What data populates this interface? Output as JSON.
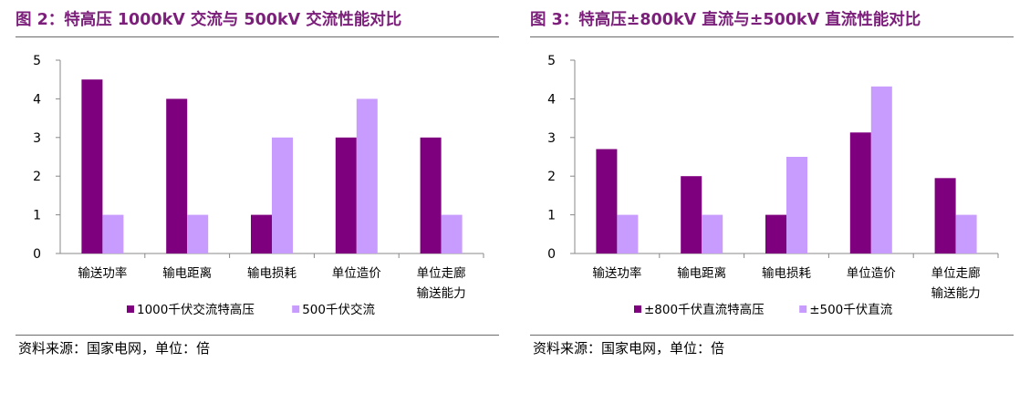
{
  "chart_data": [
    {
      "type": "bar",
      "title": "图 2：特高压 1000kV 交流与 500kV 交流性能对比",
      "categories": [
        "输送功率",
        "输电距离",
        "输电损耗",
        "单位造价",
        "单位走廊\n输送能力"
      ],
      "series": [
        {
          "name": "1000千伏交流特高压",
          "values": [
            4.5,
            4.0,
            1.0,
            3.0,
            3.0
          ]
        },
        {
          "name": "500千伏交流",
          "values": [
            1.0,
            1.0,
            3.0,
            4.0,
            1.0
          ]
        }
      ],
      "ylim": [
        0,
        5
      ],
      "yticks": [
        "0",
        "1",
        "2",
        "3",
        "4",
        "5"
      ],
      "xlabel": "",
      "ylabel": "",
      "legend": "bottom",
      "grid": false,
      "source": "资料来源：国家电网，单位：倍",
      "colors": [
        "#7f007f",
        "#c89bff"
      ]
    },
    {
      "type": "bar",
      "title": "图 3：特高压±800kV 直流与±500kV 直流性能对比",
      "categories": [
        "输送功率",
        "输电距离",
        "输电损耗",
        "单位造价",
        "单位走廊\n输送能力"
      ],
      "series": [
        {
          "name": "±800千伏直流特高压",
          "values": [
            2.7,
            2.0,
            1.0,
            3.13,
            1.95
          ]
        },
        {
          "name": "±500千伏直流",
          "values": [
            1.0,
            1.0,
            2.5,
            4.32,
            1.0
          ]
        }
      ],
      "ylim": [
        0,
        5
      ],
      "yticks": [
        "0",
        "1",
        "2",
        "3",
        "4",
        "5"
      ],
      "xlabel": "",
      "ylabel": "",
      "legend": "bottom",
      "grid": false,
      "source": "资料来源：国家电网，单位：倍",
      "colors": [
        "#7f007f",
        "#c89bff"
      ]
    }
  ]
}
